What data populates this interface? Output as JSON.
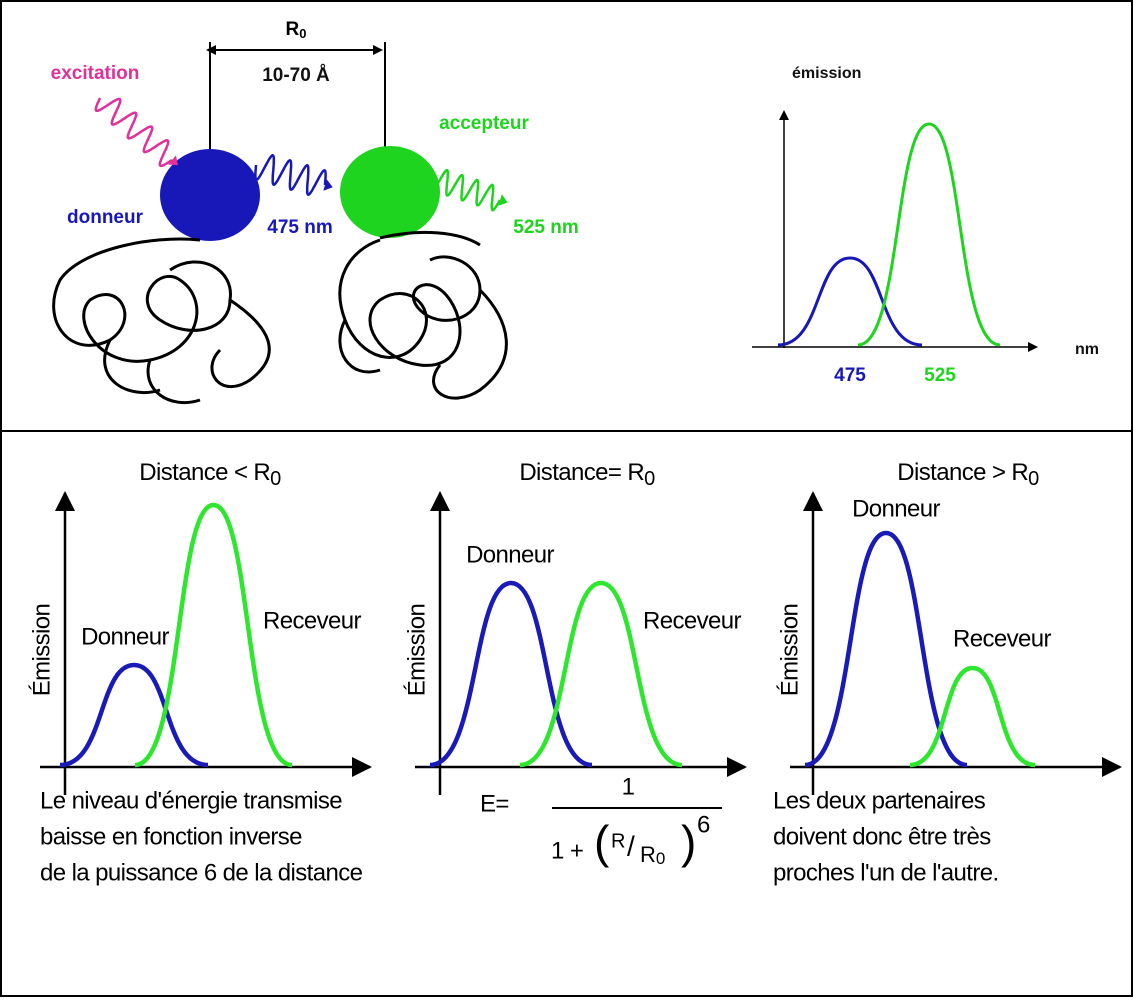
{
  "top": {
    "distance": {
      "symbol": "R",
      "subscript": "0"
    },
    "range": "10-70 Å",
    "excitation": "excitation",
    "donor": "donneur",
    "acceptor": "accepteur",
    "donor_wavelength": "475 nm",
    "acceptor_wavelength": "525 nm",
    "spectrum": {
      "y_label": "émission",
      "x_label": "nm",
      "donor_peak": "475",
      "acceptor_peak": "525"
    }
  },
  "panels": [
    {
      "title": {
        "text": "Distance < R",
        "subscript": "0"
      },
      "y_label": "Émission",
      "donor": "Donneur",
      "acceptor": "Receveur"
    },
    {
      "title": {
        "text": "Distance= R",
        "subscript": "0"
      },
      "y_label": "Émission",
      "donor": "Donneur",
      "acceptor": "Receveur"
    },
    {
      "title": {
        "text": "Distance > R",
        "subscript": "0"
      },
      "y_label": "Émission",
      "donor": "Donneur",
      "acceptor": "Receveur"
    }
  ],
  "footer": {
    "left": [
      "Le niveau d'énergie transmise",
      "baisse en fonction inverse",
      "de la puissance 6 de la distance"
    ],
    "formula": {
      "lhs": "E=",
      "numerator": "1",
      "denominator_prefix": "1 +",
      "open": "(",
      "ratio_num": "R",
      "slash": "/",
      "ratio_den": "R",
      "ratio_den_sub": "0",
      "close": ")",
      "exponent": "6"
    },
    "right": [
      "Les deux partenaires",
      "doivent donc être très",
      "proches l'un de l'autre."
    ]
  }
}
